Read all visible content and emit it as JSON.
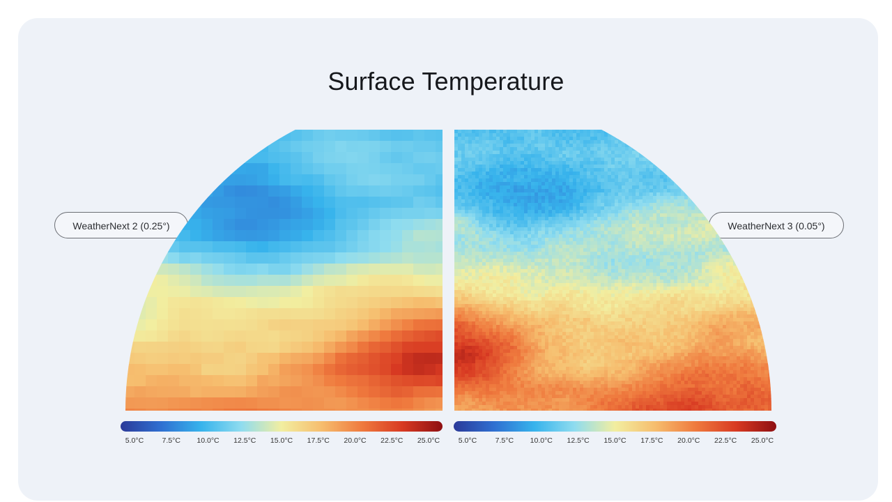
{
  "title": "Surface Temperature",
  "left_panel": {
    "label": "WeatherNext 2 (0.25°)"
  },
  "right_panel": {
    "label": "WeatherNext 3 (0.05°)"
  },
  "colorbar": {
    "ticks": [
      "5.0°C",
      "7.5°C",
      "10.0°C",
      "12.5°C",
      "15.0°C",
      "17.5°C",
      "20.0°C",
      "22.5°C",
      "25.0°C"
    ],
    "range": [
      5.0,
      25.0
    ],
    "colors": [
      "#2b3a99",
      "#2f6fd1",
      "#37b3ec",
      "#8fdcef",
      "#f2eea0",
      "#f6bd6e",
      "#ef7a3e",
      "#d83a22",
      "#8e0f12"
    ]
  }
}
